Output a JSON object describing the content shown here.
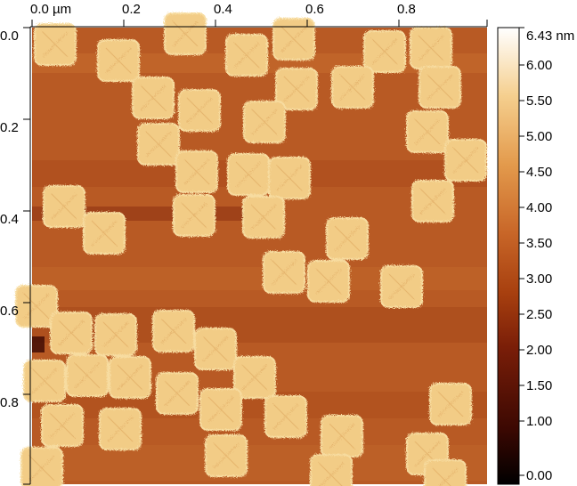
{
  "x_axis": {
    "ticks": [
      "0.0 µm",
      "0.2",
      "0.4",
      "0.6",
      "0.8"
    ]
  },
  "y_axis": {
    "ticks": [
      "0.0",
      "0.2",
      "0.4",
      "0.6",
      "0.8"
    ]
  },
  "colorbar": {
    "labels": [
      "6.43 nm",
      "6.00",
      "5.50",
      "5.00",
      "4.50",
      "4.00",
      "3.50",
      "3.00",
      "2.50",
      "2.00",
      "1.50",
      "1.00",
      "0.00"
    ],
    "palette": [
      "#000000",
      "#3b0802",
      "#7a1e08",
      "#a8400f",
      "#c86628",
      "#e39a4c",
      "#f5cf8e",
      "#ffffff"
    ]
  },
  "image": {
    "description_free": true,
    "substrate_color": "#b85a24",
    "island_color": "#f2cc86"
  }
}
